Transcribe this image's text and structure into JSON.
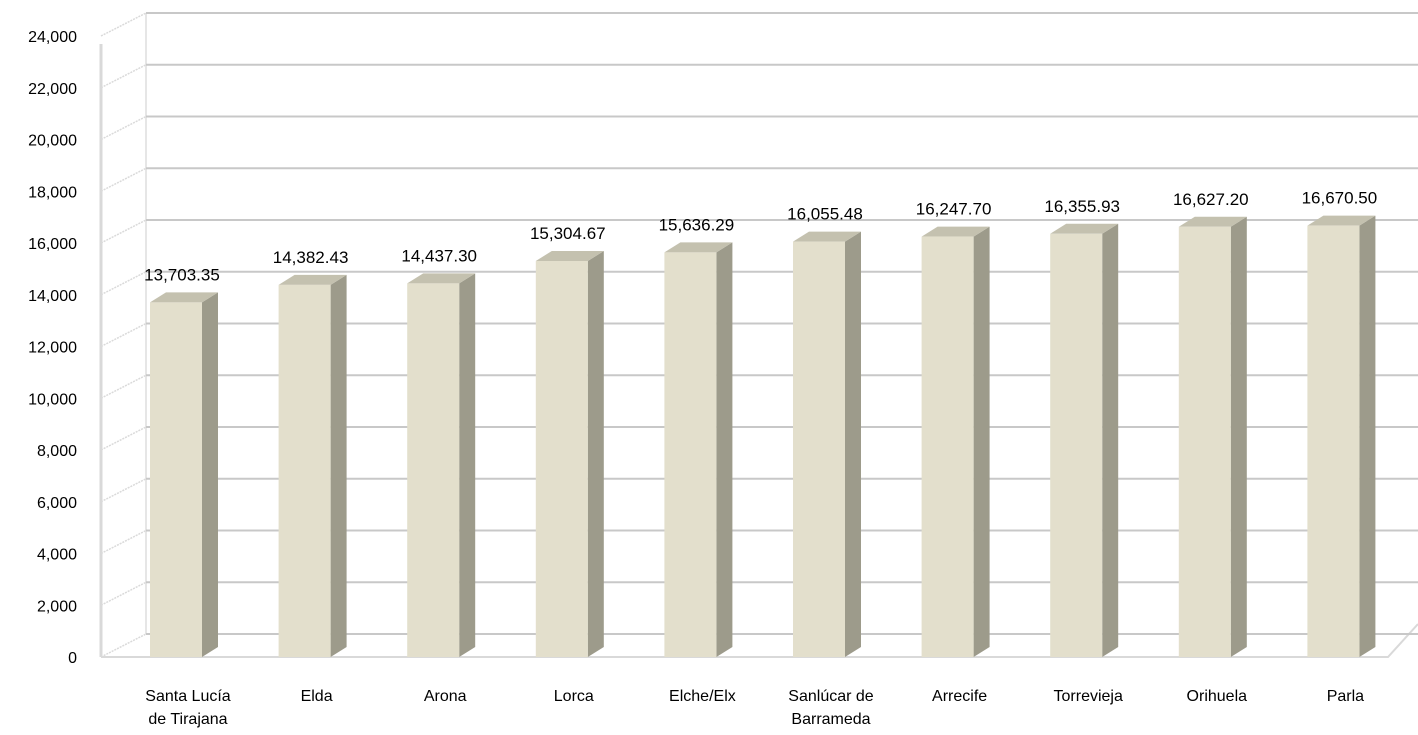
{
  "chart_data": {
    "type": "bar",
    "categories": [
      [
        "Santa Lucía",
        "de Tirajana"
      ],
      [
        "Elda"
      ],
      [
        "Arona"
      ],
      [
        "Lorca"
      ],
      [
        "Elche/Elx"
      ],
      [
        "Sanlúcar de",
        "Barrameda"
      ],
      [
        "Arrecife"
      ],
      [
        "Torrevieja"
      ],
      [
        "Orihuela"
      ],
      [
        "Parla"
      ]
    ],
    "values": [
      13703.35,
      14382.43,
      14437.3,
      15304.67,
      15636.29,
      16055.48,
      16247.7,
      16355.93,
      16627.2,
      16670.5
    ],
    "data_labels": [
      "13,703.35",
      "14,382.43",
      "14,437.30",
      "15,304.67",
      "15,636.29",
      "16,055.48",
      "16,247.70",
      "16,355.93",
      "16,627.20",
      "16,670.50"
    ],
    "yticks": [
      "0",
      "2,000",
      "4,000",
      "6,000",
      "8,000",
      "10,000",
      "12,000",
      "14,000",
      "16,000",
      "18,000",
      "20,000",
      "22,000",
      "24,000"
    ],
    "ylim": [
      0,
      24000
    ],
    "grid": true,
    "style": "3d-column",
    "colors": {
      "bar_front": "#e3dfcc",
      "bar_side": "#9d9b8b",
      "bar_top": "#c4c1af",
      "grid": "#c8c8c8",
      "wall": "#d9d9d9"
    }
  }
}
